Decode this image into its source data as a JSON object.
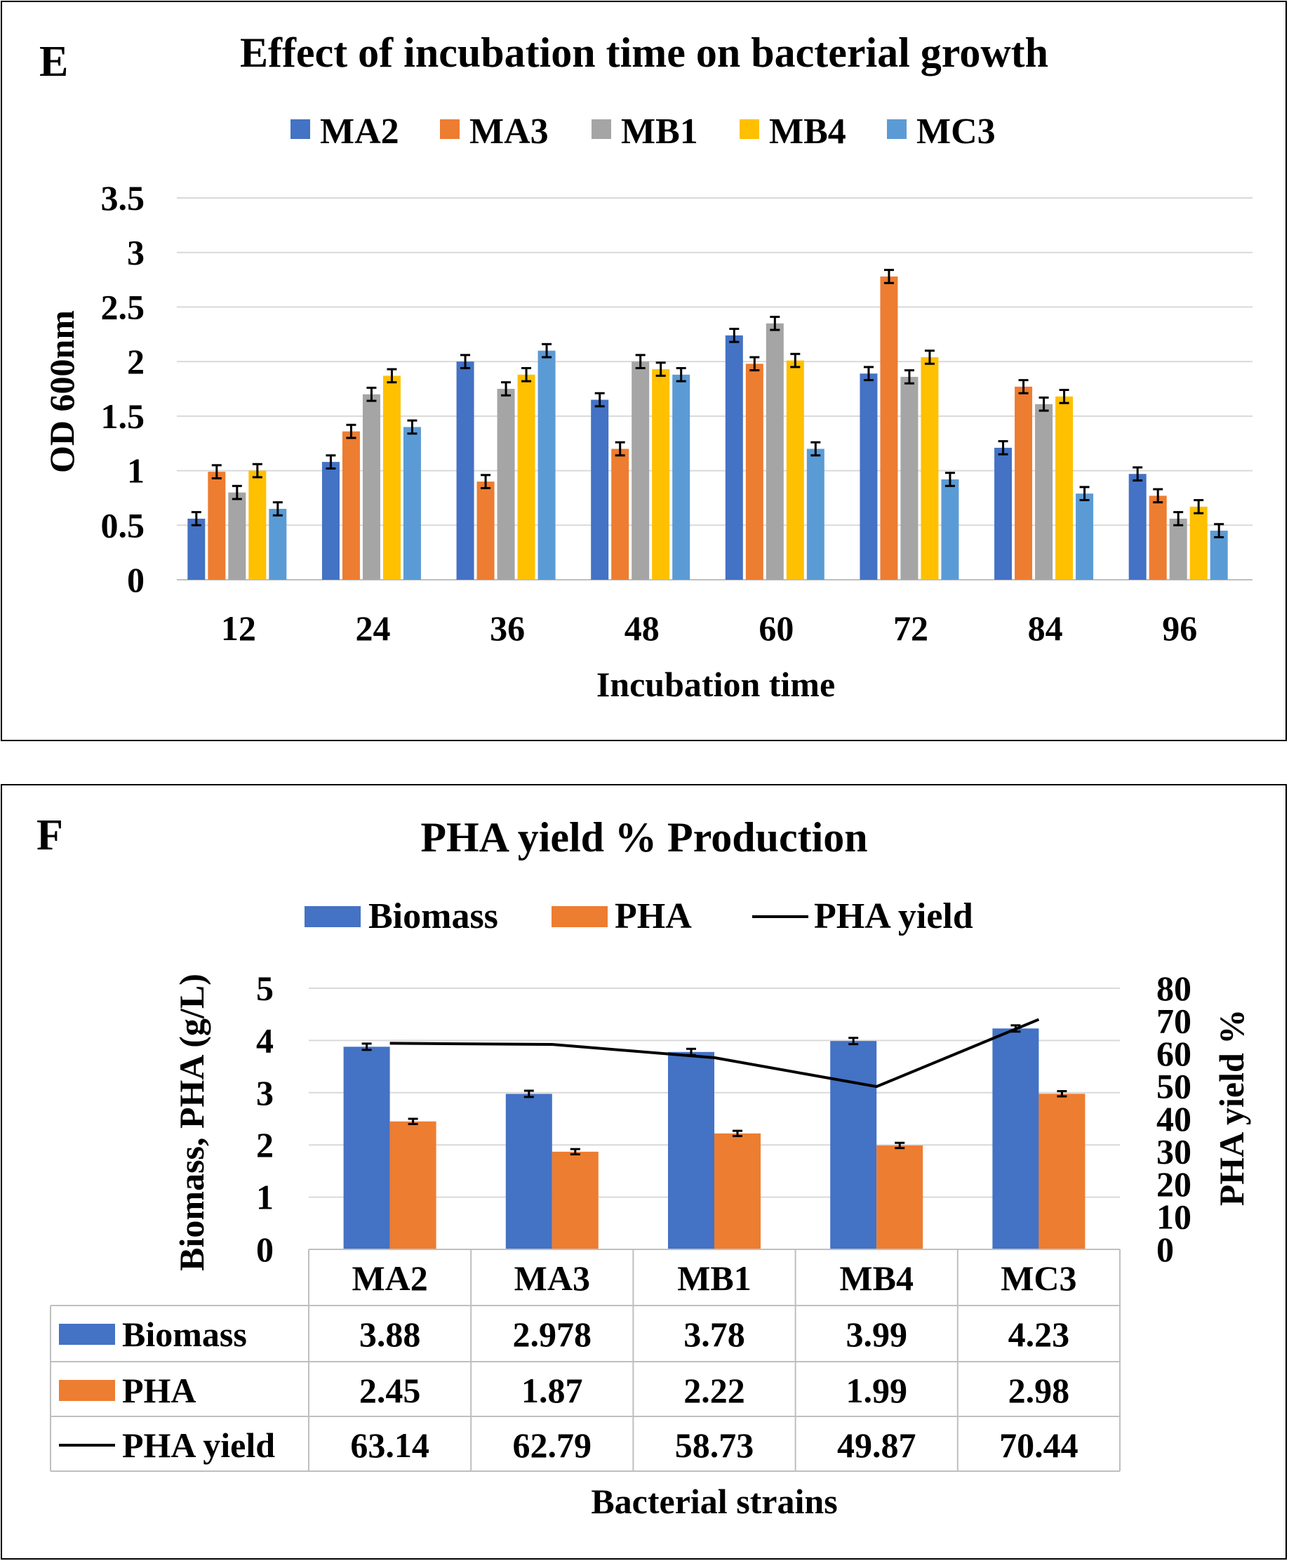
{
  "chart_data": [
    {
      "type": "bar",
      "panel_label": "E",
      "title": "Effect of incubation time on bacterial growth",
      "xlabel": "Incubation time",
      "ylabel": "OD 600nm",
      "ylim": [
        0,
        3.5
      ],
      "yticks": [
        "0",
        "0.5",
        "1",
        "1.5",
        "2",
        "2.5",
        "3",
        "3.5"
      ],
      "grid": true,
      "legend_position": "top",
      "categories": [
        "12",
        "24",
        "36",
        "48",
        "60",
        "72",
        "84",
        "96"
      ],
      "series": [
        {
          "name": "MA2",
          "color": "#4472C4",
          "values": [
            0.56,
            1.08,
            2.0,
            1.65,
            2.24,
            1.89,
            1.21,
            0.97
          ],
          "error": 0.06
        },
        {
          "name": "MA3",
          "color": "#ED7D31",
          "values": [
            0.99,
            1.36,
            0.9,
            1.2,
            1.98,
            2.78,
            1.77,
            0.77
          ],
          "error": 0.06
        },
        {
          "name": "MB1",
          "color": "#A5A5A5",
          "values": [
            0.8,
            1.7,
            1.75,
            2.0,
            2.35,
            1.86,
            1.61,
            0.56
          ],
          "error": 0.06
        },
        {
          "name": "MB4",
          "color": "#FFC000",
          "values": [
            1.0,
            1.87,
            1.88,
            1.93,
            2.01,
            2.04,
            1.68,
            0.67
          ],
          "error": 0.06
        },
        {
          "name": "MC3",
          "color": "#5B9BD5",
          "values": [
            0.65,
            1.4,
            2.1,
            1.88,
            1.2,
            0.92,
            0.79,
            0.45
          ],
          "error": 0.06
        }
      ]
    },
    {
      "type": "bar",
      "panel_label": "F",
      "title": "PHA yield % Production",
      "xlabel": "Bacterial strains",
      "ylabel": "Biomass, PHA (g/L)",
      "y2label": "PHA yield %",
      "ylim": [
        0,
        5
      ],
      "y2lim": [
        0,
        80
      ],
      "yticks": [
        "0",
        "1",
        "2",
        "3",
        "4",
        "5"
      ],
      "y2ticks": [
        "0",
        "10",
        "20",
        "30",
        "40",
        "50",
        "60",
        "70",
        "80"
      ],
      "grid": true,
      "legend_position": "top",
      "categories": [
        "MA2",
        "MA3",
        "MB1",
        "MB4",
        "MC3"
      ],
      "series": [
        {
          "name": "Biomass",
          "kind": "bar",
          "color": "#4472C4",
          "values": [
            3.88,
            2.978,
            3.78,
            3.99,
            4.23
          ],
          "labels": [
            "3.88",
            "2.978",
            "3.78",
            "3.99",
            "4.23"
          ],
          "error": 0.06
        },
        {
          "name": "PHA",
          "kind": "bar",
          "color": "#ED7D31",
          "values": [
            2.45,
            1.87,
            2.22,
            1.99,
            2.98
          ],
          "labels": [
            "2.45",
            "1.87",
            "2.22",
            "1.99",
            "2.98"
          ],
          "error": 0.05
        },
        {
          "name": "PHA yield",
          "kind": "line",
          "axis": "right",
          "color": "#000000",
          "values": [
            63.14,
            62.79,
            58.73,
            49.87,
            70.44
          ],
          "labels": [
            "63.14",
            "62.79",
            "58.73",
            "49.87",
            "70.44"
          ]
        }
      ]
    }
  ]
}
